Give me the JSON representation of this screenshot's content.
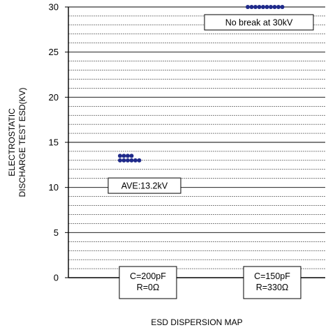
{
  "chart_data": {
    "type": "scatter",
    "title": "",
    "xlabel": "ESD DISPERSION MAP",
    "ylabel_lines": [
      "ELECTROSTATIC",
      "DISCHARGE TEST ESD(KV)"
    ],
    "ylim": [
      0,
      30
    ],
    "yticks": [
      0,
      5,
      10,
      15,
      20,
      25,
      30
    ],
    "grid": true,
    "grid_step": 1,
    "point_color": "#1f2a8a",
    "categories": [
      {
        "name": "cond-200pf",
        "label_lines": [
          "C=200pF",
          "R=0Ω"
        ]
      },
      {
        "name": "cond-150pf",
        "label_lines": [
          "C=150pF",
          "R=330Ω"
        ]
      }
    ],
    "series": [
      {
        "category_index": 0,
        "values": [
          13.0,
          13.0,
          13.0,
          13.0,
          13.0,
          13.0,
          13.5,
          13.5,
          13.5,
          13.5
        ]
      },
      {
        "category_index": 1,
        "values": [
          30,
          30,
          30,
          30,
          30,
          30,
          30,
          30,
          30,
          30
        ]
      }
    ],
    "annotations": [
      {
        "name": "average-annotation",
        "text": "AVE:13.2kV",
        "category_index": 0,
        "y": 10.2
      },
      {
        "name": "no-break-annotation",
        "text": "No break at 30kV",
        "category_index": 1,
        "y": 28.3
      }
    ]
  }
}
